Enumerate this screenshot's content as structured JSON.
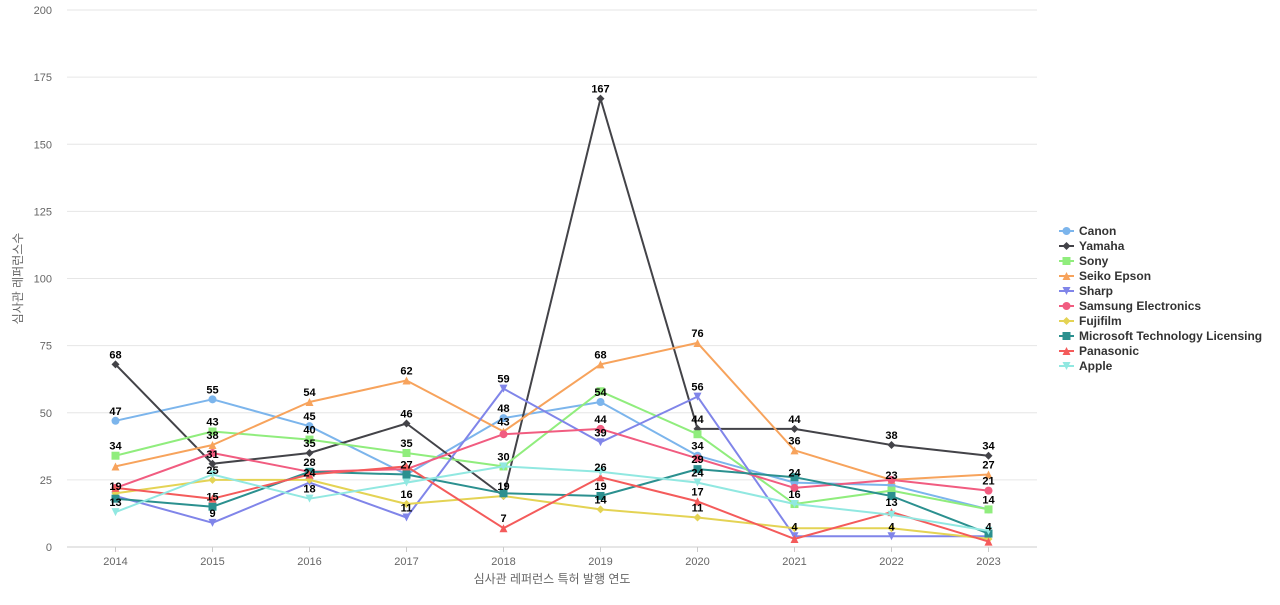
{
  "chart_data": {
    "type": "line",
    "title": "",
    "xlabel": "심사관 레퍼런스 특허 발행 연도",
    "ylabel": "심사관 레퍼런스수",
    "ylim": [
      0,
      200
    ],
    "yticks": [
      0,
      25,
      50,
      75,
      100,
      125,
      150,
      175,
      200
    ],
    "grid": true,
    "legend_position": "right",
    "categories": [
      "2014",
      "2015",
      "2016",
      "2017",
      "2018",
      "2019",
      "2020",
      "2021",
      "2022",
      "2023"
    ],
    "series": [
      {
        "name": "Canon",
        "color": "#7cb5ec",
        "marker": "circle",
        "values": [
          47,
          55,
          45,
          27,
          48,
          54,
          34,
          24,
          23,
          14
        ]
      },
      {
        "name": "Yamaha",
        "color": "#434348",
        "marker": "diamond",
        "values": [
          68,
          31,
          35,
          46,
          19,
          167,
          44,
          44,
          38,
          34
        ]
      },
      {
        "name": "Sony",
        "color": "#90ed7d",
        "marker": "square",
        "values": [
          34,
          43,
          40,
          35,
          30,
          58,
          42,
          16,
          21,
          14
        ]
      },
      {
        "name": "Seiko Epson",
        "color": "#f7a35c",
        "marker": "triangle",
        "values": [
          30,
          38,
          54,
          62,
          43,
          68,
          76,
          36,
          25,
          27
        ]
      },
      {
        "name": "Sharp",
        "color": "#8085e9",
        "marker": "triangle-down",
        "values": [
          19,
          9,
          24,
          11,
          59,
          39,
          56,
          4,
          4,
          4
        ]
      },
      {
        "name": "Samsung Electronics",
        "color": "#f15c80",
        "marker": "circle",
        "values": [
          22,
          35,
          28,
          29,
          42,
          44,
          33,
          22,
          25,
          21
        ]
      },
      {
        "name": "Fujifilm",
        "color": "#e4d354",
        "marker": "diamond",
        "values": [
          20,
          25,
          25,
          16,
          19,
          14,
          11,
          7,
          7,
          3
        ]
      },
      {
        "name": "Microsoft Technology Licensing",
        "color": "#2b908f",
        "marker": "square",
        "values": [
          18,
          15,
          28,
          27,
          20,
          19,
          29,
          26,
          19,
          5
        ]
      },
      {
        "name": "Panasonic",
        "color": "#f45b5b",
        "marker": "triangle",
        "values": [
          22,
          18,
          27,
          30,
          7,
          26,
          17,
          3,
          13,
          2
        ]
      },
      {
        "name": "Apple",
        "color": "#91e8e1",
        "marker": "triangle-down",
        "values": [
          13,
          27,
          18,
          24,
          30,
          28,
          24,
          16,
          12,
          6
        ]
      }
    ],
    "data_labels": [
      {
        "text": "47",
        "cat": 0,
        "value": 47
      },
      {
        "text": "34",
        "cat": 0,
        "value": 34
      },
      {
        "text": "68",
        "cat": 0,
        "value": 68
      },
      {
        "text": "19",
        "cat": 0,
        "value": 19
      },
      {
        "text": "13",
        "cat": 0,
        "value": 13
      },
      {
        "text": "55",
        "cat": 1,
        "value": 55
      },
      {
        "text": "43",
        "cat": 1,
        "value": 43
      },
      {
        "text": "38",
        "cat": 1,
        "value": 38
      },
      {
        "text": "31",
        "cat": 1,
        "value": 31
      },
      {
        "text": "25",
        "cat": 1,
        "value": 25
      },
      {
        "text": "15",
        "cat": 1,
        "value": 15
      },
      {
        "text": "9",
        "cat": 1,
        "value": 9
      },
      {
        "text": "54",
        "cat": 2,
        "value": 54
      },
      {
        "text": "45",
        "cat": 2,
        "value": 45
      },
      {
        "text": "40",
        "cat": 2,
        "value": 40
      },
      {
        "text": "35",
        "cat": 2,
        "value": 35
      },
      {
        "text": "24",
        "cat": 2,
        "value": 24
      },
      {
        "text": "28",
        "cat": 2,
        "value": 28
      },
      {
        "text": "18",
        "cat": 2,
        "value": 18
      },
      {
        "text": "62",
        "cat": 3,
        "value": 62
      },
      {
        "text": "46",
        "cat": 3,
        "value": 46
      },
      {
        "text": "35",
        "cat": 3,
        "value": 35
      },
      {
        "text": "27",
        "cat": 3,
        "value": 27
      },
      {
        "text": "16",
        "cat": 3,
        "value": 16
      },
      {
        "text": "11",
        "cat": 3,
        "value": 11
      },
      {
        "text": "59",
        "cat": 4,
        "value": 59
      },
      {
        "text": "48",
        "cat": 4,
        "value": 48
      },
      {
        "text": "43",
        "cat": 4,
        "value": 43
      },
      {
        "text": "30",
        "cat": 4,
        "value": 30
      },
      {
        "text": "19",
        "cat": 4,
        "value": 19
      },
      {
        "text": "7",
        "cat": 4,
        "value": 7
      },
      {
        "text": "167",
        "cat": 5,
        "value": 167
      },
      {
        "text": "68",
        "cat": 5,
        "value": 68
      },
      {
        "text": "54",
        "cat": 5,
        "value": 54
      },
      {
        "text": "44",
        "cat": 5,
        "value": 44
      },
      {
        "text": "39",
        "cat": 5,
        "value": 39
      },
      {
        "text": "26",
        "cat": 5,
        "value": 26
      },
      {
        "text": "19",
        "cat": 5,
        "value": 19
      },
      {
        "text": "14",
        "cat": 5,
        "value": 14
      },
      {
        "text": "76",
        "cat": 6,
        "value": 76
      },
      {
        "text": "56",
        "cat": 6,
        "value": 56
      },
      {
        "text": "44",
        "cat": 6,
        "value": 44
      },
      {
        "text": "34",
        "cat": 6,
        "value": 34
      },
      {
        "text": "29",
        "cat": 6,
        "value": 29
      },
      {
        "text": "24",
        "cat": 6,
        "value": 24
      },
      {
        "text": "17",
        "cat": 6,
        "value": 17
      },
      {
        "text": "11",
        "cat": 6,
        "value": 11
      },
      {
        "text": "44",
        "cat": 7,
        "value": 44
      },
      {
        "text": "36",
        "cat": 7,
        "value": 36
      },
      {
        "text": "24",
        "cat": 7,
        "value": 24
      },
      {
        "text": "16",
        "cat": 7,
        "value": 16
      },
      {
        "text": "4",
        "cat": 7,
        "value": 4
      },
      {
        "text": "38",
        "cat": 8,
        "value": 38
      },
      {
        "text": "23",
        "cat": 8,
        "value": 23
      },
      {
        "text": "13",
        "cat": 8,
        "value": 13
      },
      {
        "text": "4",
        "cat": 8,
        "value": 4
      },
      {
        "text": "34",
        "cat": 9,
        "value": 34
      },
      {
        "text": "27",
        "cat": 9,
        "value": 27
      },
      {
        "text": "21",
        "cat": 9,
        "value": 21
      },
      {
        "text": "14",
        "cat": 9,
        "value": 14
      },
      {
        "text": "4",
        "cat": 9,
        "value": 4
      }
    ]
  }
}
